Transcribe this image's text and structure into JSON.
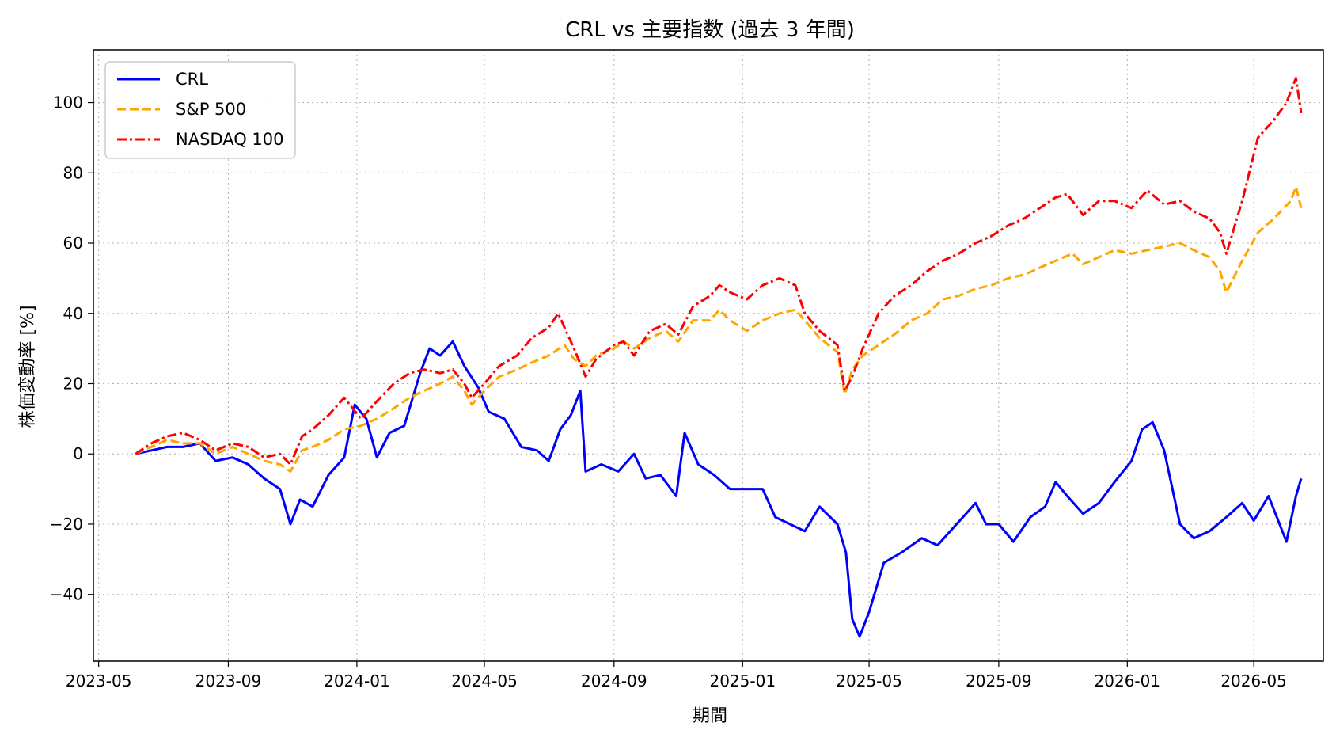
{
  "chart_data": {
    "type": "line",
    "title": "CRL vs 主要指数 (過去 3 年間)",
    "xlabel": "期間",
    "ylabel": "株価変動率 [%]",
    "xlim": [
      "2023-04-26",
      "2026-07-06"
    ],
    "ylim": [
      -59,
      115
    ],
    "x_ticks": [
      "2023-05",
      "2023-09",
      "2024-01",
      "2024-05",
      "2024-09",
      "2025-01",
      "2025-05",
      "2025-09",
      "2026-01",
      "2026-05"
    ],
    "y_ticks": [
      -40,
      -20,
      0,
      20,
      40,
      60,
      80,
      100
    ],
    "y_tick_labels": [
      "−40",
      "−20",
      "0",
      "20",
      "40",
      "60",
      "80",
      "100"
    ],
    "grid": true,
    "legend_position": "top-left",
    "series": [
      {
        "name": "CRL",
        "color": "#0000ff",
        "linestyle": "solid",
        "x": [
          "2023-06-05",
          "2023-06-20",
          "2023-07-05",
          "2023-07-20",
          "2023-08-05",
          "2023-08-20",
          "2023-09-05",
          "2023-09-20",
          "2023-10-05",
          "2023-10-20",
          "2023-10-30",
          "2023-11-08",
          "2023-11-20",
          "2023-12-05",
          "2023-12-20",
          "2023-12-30",
          "2024-01-10",
          "2024-01-20",
          "2024-02-01",
          "2024-02-15",
          "2024-03-01",
          "2024-03-10",
          "2024-03-20",
          "2024-04-01",
          "2024-04-12",
          "2024-04-25",
          "2024-05-05",
          "2024-05-20",
          "2024-06-05",
          "2024-06-20",
          "2024-07-01",
          "2024-07-12",
          "2024-07-22",
          "2024-07-31",
          "2024-08-05",
          "2024-08-20",
          "2024-09-05",
          "2024-09-20",
          "2024-10-01",
          "2024-10-15",
          "2024-10-30",
          "2024-11-07",
          "2024-11-20",
          "2024-12-05",
          "2024-12-20",
          "2025-01-05",
          "2025-01-20",
          "2025-02-01",
          "2025-02-15",
          "2025-03-01",
          "2025-03-15",
          "2025-04-01",
          "2025-04-09",
          "2025-04-15",
          "2025-04-22",
          "2025-05-01",
          "2025-05-15",
          "2025-06-01",
          "2025-06-20",
          "2025-07-05",
          "2025-07-20",
          "2025-08-01",
          "2025-08-10",
          "2025-08-20",
          "2025-09-01",
          "2025-09-15",
          "2025-10-01",
          "2025-10-15",
          "2025-10-25",
          "2025-11-05",
          "2025-11-20",
          "2025-12-05",
          "2025-12-20",
          "2026-01-05",
          "2026-01-15",
          "2026-01-25",
          "2026-02-05",
          "2026-02-20",
          "2026-03-05",
          "2026-03-20",
          "2026-04-05",
          "2026-04-20",
          "2026-05-01",
          "2026-05-15",
          "2026-06-01",
          "2026-06-10",
          "2026-06-15"
        ],
        "y": [
          0,
          1,
          2,
          2,
          3,
          -2,
          -1,
          -3,
          -7,
          -10,
          -20,
          -13,
          -15,
          -6,
          -1,
          14,
          10,
          -1,
          6,
          8,
          23,
          30,
          28,
          32,
          25,
          19,
          12,
          10,
          2,
          1,
          -2,
          7,
          11,
          18,
          -5,
          -3,
          -5,
          0,
          -7,
          -6,
          -12,
          6,
          -3,
          -6,
          -10,
          -10,
          -10,
          -18,
          -20,
          -22,
          -15,
          -20,
          -28,
          -47,
          -52,
          -45,
          -31,
          -28,
          -24,
          -26,
          -21,
          -17,
          -14,
          -20,
          -20,
          -25,
          -18,
          -15,
          -8,
          -12,
          -17,
          -14,
          -8,
          -2,
          7,
          9,
          1,
          -20,
          -24,
          -22,
          -18,
          -14,
          -19,
          -12,
          -25,
          -12,
          -7
        ]
      },
      {
        "name": "S&P 500",
        "color": "#ffa500",
        "linestyle": "dashed",
        "x": [
          "2023-06-05",
          "2023-06-20",
          "2023-07-05",
          "2023-07-20",
          "2023-08-05",
          "2023-08-20",
          "2023-09-05",
          "2023-09-20",
          "2023-10-05",
          "2023-10-20",
          "2023-10-30",
          "2023-11-10",
          "2023-11-20",
          "2023-12-05",
          "2023-12-20",
          "2024-01-05",
          "2024-01-20",
          "2024-02-05",
          "2024-02-20",
          "2024-03-05",
          "2024-03-20",
          "2024-04-01",
          "2024-04-12",
          "2024-04-19",
          "2024-05-01",
          "2024-05-15",
          "2024-06-01",
          "2024-06-15",
          "2024-07-01",
          "2024-07-16",
          "2024-07-25",
          "2024-08-05",
          "2024-08-15",
          "2024-09-01",
          "2024-09-10",
          "2024-09-20",
          "2024-10-05",
          "2024-10-20",
          "2024-11-01",
          "2024-11-15",
          "2024-12-01",
          "2024-12-10",
          "2024-12-20",
          "2025-01-05",
          "2025-01-20",
          "2025-02-05",
          "2025-02-20",
          "2025-03-01",
          "2025-03-15",
          "2025-04-01",
          "2025-04-08",
          "2025-04-15",
          "2025-04-25",
          "2025-05-10",
          "2025-05-25",
          "2025-06-10",
          "2025-06-25",
          "2025-07-10",
          "2025-07-25",
          "2025-08-10",
          "2025-08-25",
          "2025-09-10",
          "2025-09-25",
          "2025-10-10",
          "2025-10-25",
          "2025-11-10",
          "2025-11-20",
          "2025-12-05",
          "2025-12-20",
          "2026-01-05",
          "2026-01-20",
          "2026-02-05",
          "2026-02-20",
          "2026-03-05",
          "2026-03-20",
          "2026-03-30",
          "2026-04-05",
          "2026-04-20",
          "2026-05-05",
          "2026-05-20",
          "2026-06-05",
          "2026-06-10",
          "2026-06-15"
        ],
        "y": [
          0,
          2,
          4,
          3,
          3,
          0,
          2,
          0,
          -2,
          -3,
          -5,
          1,
          2,
          4,
          7,
          8,
          10,
          13,
          16,
          18,
          20,
          22,
          18,
          14,
          18,
          22,
          24,
          26,
          28,
          31,
          27,
          25,
          28,
          30,
          32,
          30,
          33,
          35,
          32,
          38,
          38,
          41,
          38,
          35,
          38,
          40,
          41,
          38,
          33,
          29,
          17,
          24,
          28,
          31,
          34,
          38,
          40,
          44,
          45,
          47,
          48,
          50,
          51,
          53,
          55,
          57,
          54,
          56,
          58,
          57,
          58,
          59,
          60,
          58,
          56,
          52,
          46,
          55,
          63,
          67,
          72,
          76,
          70
        ]
      },
      {
        "name": "NASDAQ 100",
        "color": "#ff0000",
        "linestyle": "dashdot",
        "x": [
          "2023-06-05",
          "2023-06-20",
          "2023-07-05",
          "2023-07-20",
          "2023-08-05",
          "2023-08-20",
          "2023-09-05",
          "2023-09-20",
          "2023-10-05",
          "2023-10-20",
          "2023-10-30",
          "2023-11-10",
          "2023-11-20",
          "2023-12-05",
          "2023-12-20",
          "2024-01-05",
          "2024-01-20",
          "2024-02-05",
          "2024-02-20",
          "2024-03-05",
          "2024-03-20",
          "2024-04-01",
          "2024-04-12",
          "2024-04-19",
          "2024-05-01",
          "2024-05-15",
          "2024-06-01",
          "2024-06-15",
          "2024-07-01",
          "2024-07-10",
          "2024-07-25",
          "2024-08-05",
          "2024-08-15",
          "2024-09-01",
          "2024-09-10",
          "2024-09-20",
          "2024-10-05",
          "2024-10-20",
          "2024-11-01",
          "2024-11-15",
          "2024-12-01",
          "2024-12-10",
          "2024-12-20",
          "2025-01-05",
          "2025-01-20",
          "2025-02-05",
          "2025-02-20",
          "2025-03-01",
          "2025-03-15",
          "2025-04-01",
          "2025-04-08",
          "2025-04-15",
          "2025-04-25",
          "2025-05-10",
          "2025-05-25",
          "2025-06-10",
          "2025-06-25",
          "2025-07-10",
          "2025-07-25",
          "2025-08-10",
          "2025-08-25",
          "2025-09-10",
          "2025-09-25",
          "2025-10-10",
          "2025-10-25",
          "2025-11-05",
          "2025-11-20",
          "2025-12-05",
          "2025-12-20",
          "2026-01-05",
          "2026-01-20",
          "2026-02-05",
          "2026-02-20",
          "2026-03-05",
          "2026-03-20",
          "2026-03-30",
          "2026-04-05",
          "2026-04-20",
          "2026-05-05",
          "2026-05-20",
          "2026-06-01",
          "2026-06-10",
          "2026-06-15"
        ],
        "y": [
          0,
          3,
          5,
          6,
          4,
          1,
          3,
          2,
          -1,
          0,
          -3,
          5,
          7,
          11,
          16,
          10,
          15,
          20,
          23,
          24,
          23,
          24,
          20,
          16,
          20,
          25,
          28,
          33,
          36,
          40,
          30,
          22,
          27,
          31,
          32,
          28,
          35,
          37,
          34,
          42,
          45,
          48,
          46,
          44,
          48,
          50,
          48,
          40,
          35,
          31,
          18,
          22,
          30,
          40,
          45,
          48,
          52,
          55,
          57,
          60,
          62,
          65,
          67,
          70,
          73,
          74,
          68,
          72,
          72,
          70,
          75,
          71,
          72,
          69,
          67,
          63,
          57,
          72,
          90,
          95,
          100,
          107,
          97
        ]
      }
    ]
  }
}
